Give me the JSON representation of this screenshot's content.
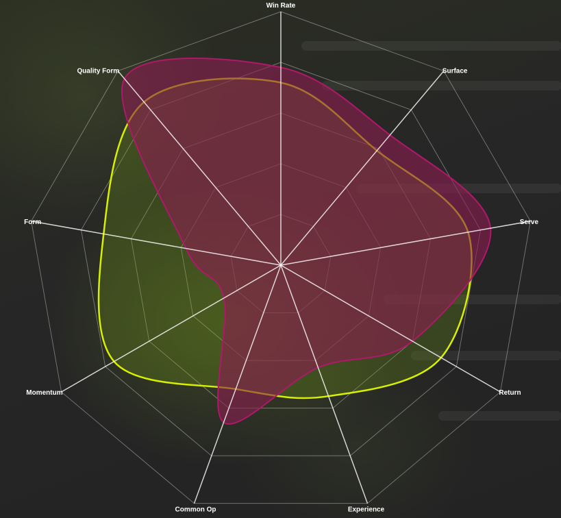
{
  "chart_data": {
    "type": "radar",
    "axes": [
      "Win Rate",
      "Surface",
      "Serve",
      "Return",
      "Experience",
      "Common Op",
      "Momentum",
      "Form",
      "Quality Form"
    ],
    "range": [
      0,
      100
    ],
    "rings": 5,
    "series": [
      {
        "color": "#9e1a5e",
        "fill": "rgba(140,30,80,0.60)",
        "stroke": "#b0186a",
        "values": [
          78,
          67,
          84,
          60,
          43,
          66,
          26,
          38,
          96
        ]
      },
      {
        "color": "#d8f000",
        "fill": "rgba(110,150,20,0.28)",
        "stroke": "#d8f000",
        "values": [
          72,
          59,
          75,
          73,
          55,
          52,
          76,
          71,
          84
        ]
      }
    ],
    "grid": true,
    "legend": "none"
  }
}
